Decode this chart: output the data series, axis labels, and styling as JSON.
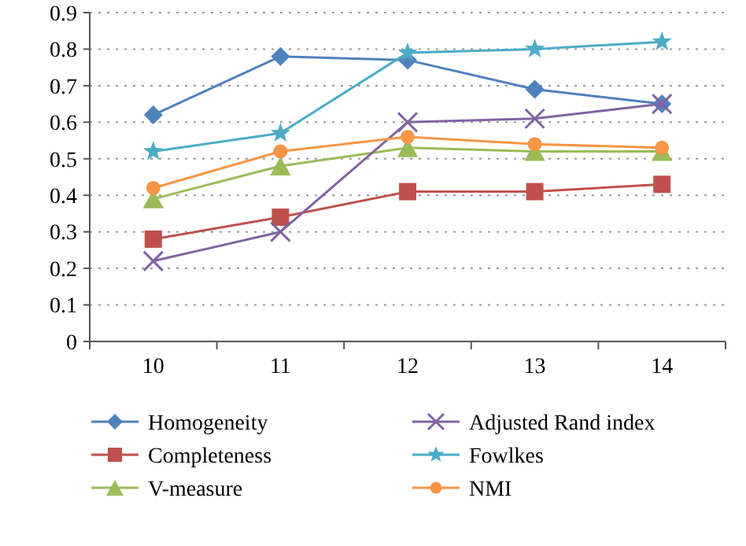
{
  "chart_data": {
    "type": "line",
    "categories": [
      "10",
      "11",
      "12",
      "13",
      "14"
    ],
    "series": [
      {
        "name": "Homogeneity",
        "color": "#4f81bd",
        "marker": "diamond",
        "values": [
          0.62,
          0.78,
          0.77,
          0.69,
          0.65
        ]
      },
      {
        "name": "Completeness",
        "color": "#c0504d",
        "marker": "square",
        "values": [
          0.28,
          0.34,
          0.41,
          0.41,
          0.43
        ]
      },
      {
        "name": "V-measure",
        "color": "#9bbb59",
        "marker": "triangle",
        "values": [
          0.39,
          0.48,
          0.53,
          0.52,
          0.52
        ]
      },
      {
        "name": "Adjusted Rand index",
        "color": "#8064a2",
        "marker": "cross",
        "values": [
          0.22,
          0.3,
          0.6,
          0.61,
          0.65
        ]
      },
      {
        "name": "Fowlkes",
        "color": "#4bacc6",
        "marker": "star",
        "values": [
          0.52,
          0.57,
          0.79,
          0.8,
          0.82
        ]
      },
      {
        "name": "NMI",
        "color": "#f79646",
        "marker": "circle",
        "values": [
          0.42,
          0.52,
          0.56,
          0.54,
          0.53
        ]
      }
    ],
    "ylim": [
      0,
      0.9
    ],
    "yticks": [
      0,
      0.1,
      0.2,
      0.3,
      0.4,
      0.5,
      0.6,
      0.7,
      0.8,
      0.9
    ],
    "grid": "y",
    "legend": "bottom"
  }
}
